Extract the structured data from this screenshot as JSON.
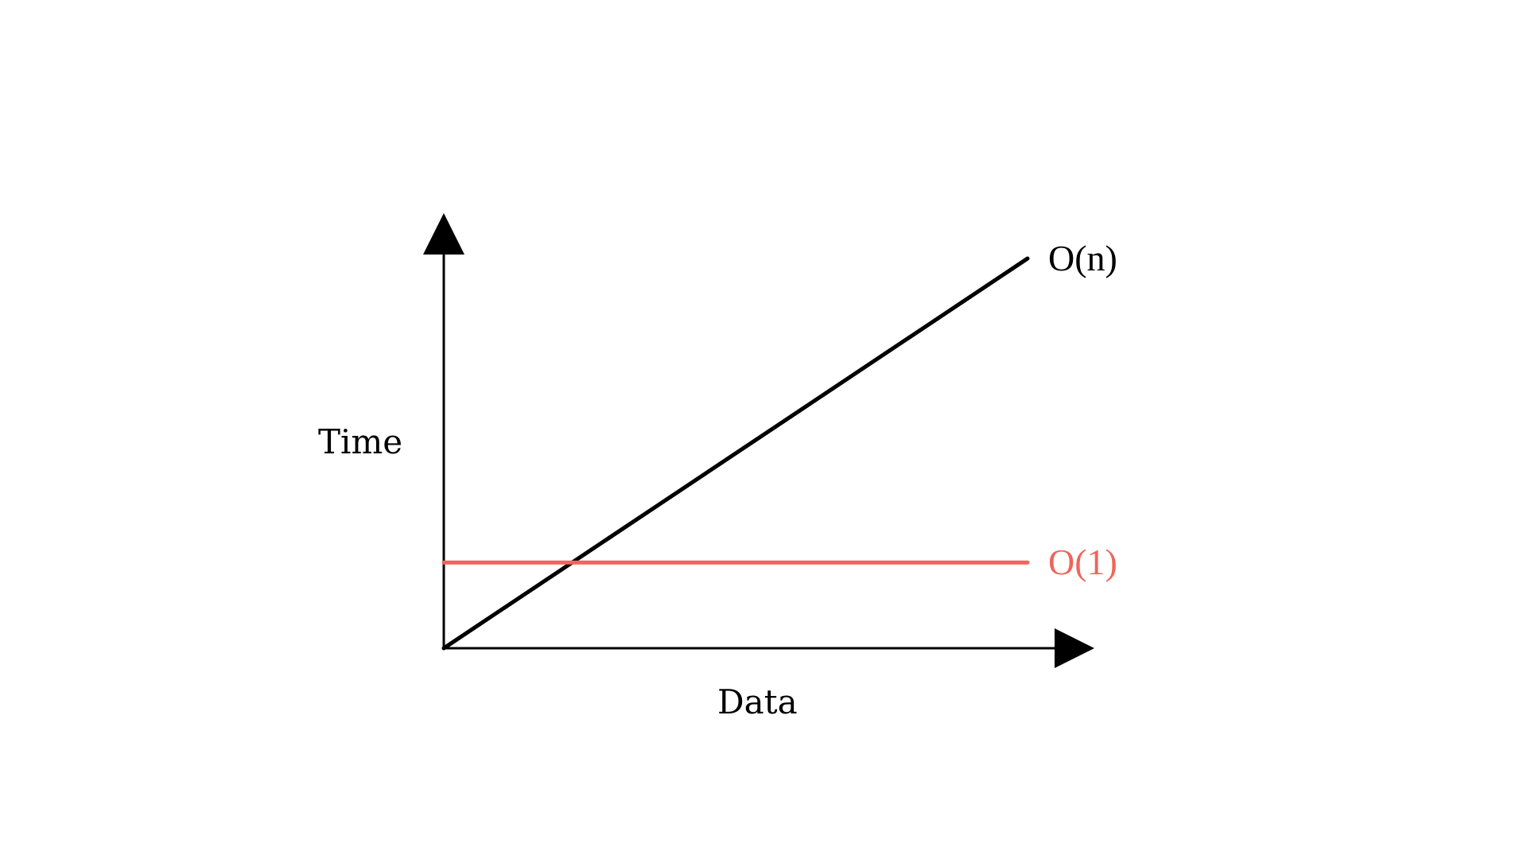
{
  "chart_data": {
    "type": "line",
    "title": "",
    "xlabel": "Data",
    "ylabel": "Time",
    "xlim": [
      0,
      1
    ],
    "ylim": [
      0,
      1
    ],
    "grid": false,
    "legend": "inline-right",
    "series": [
      {
        "name": "O(n)",
        "color": "#000000",
        "points": [
          [
            0,
            0
          ],
          [
            1,
            1
          ]
        ]
      },
      {
        "name": "O(1)",
        "color": "#f0645a",
        "points": [
          [
            0,
            0.22
          ],
          [
            1,
            0.22
          ]
        ]
      }
    ]
  }
}
